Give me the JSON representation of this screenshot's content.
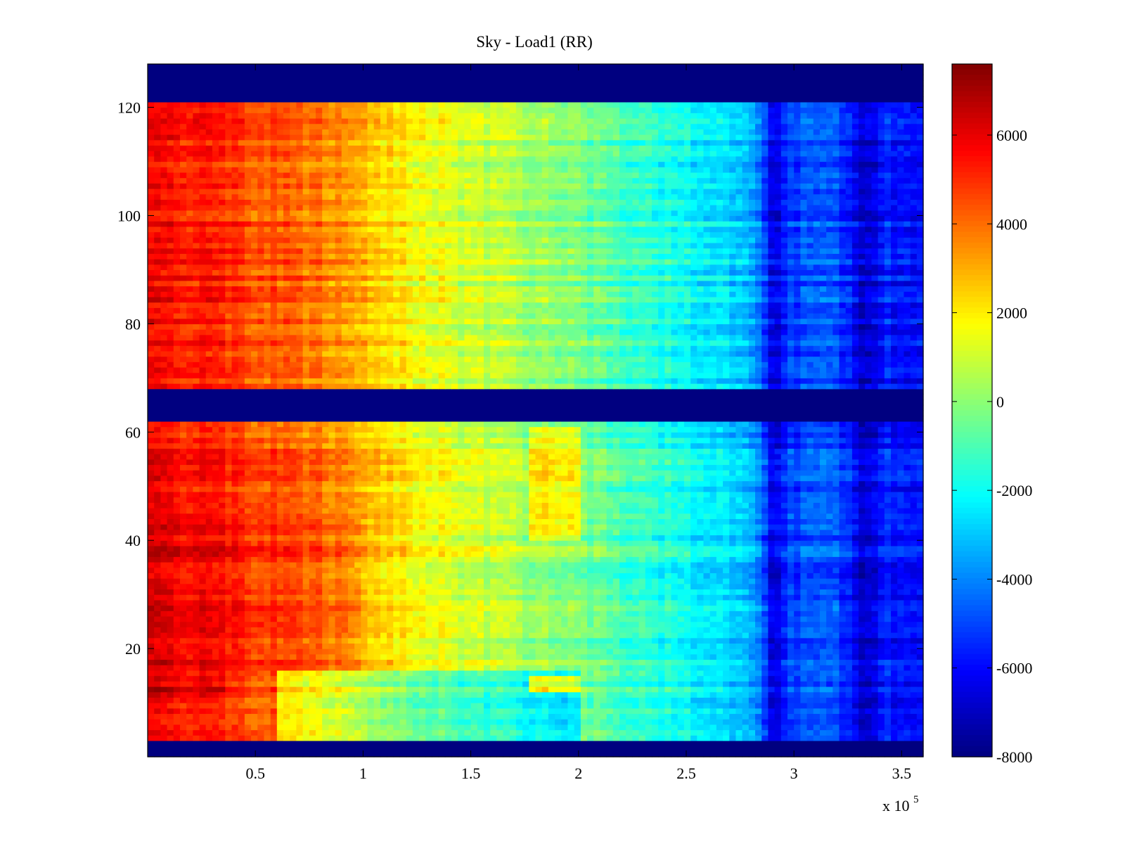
{
  "chart_data": {
    "type": "heatmap",
    "title": "Sky - Load1 (RR)",
    "xlabel": "",
    "ylabel": "",
    "x_exponent_label": "x 10",
    "x_exponent_power": "5",
    "x_range": [
      0,
      360000
    ],
    "y_range": [
      0,
      128
    ],
    "x_ticks": [
      {
        "value": 50000,
        "label": "0.5"
      },
      {
        "value": 100000,
        "label": "1"
      },
      {
        "value": 150000,
        "label": "1.5"
      },
      {
        "value": 200000,
        "label": "2"
      },
      {
        "value": 250000,
        "label": "2.5"
      },
      {
        "value": 300000,
        "label": "3"
      },
      {
        "value": 350000,
        "label": "3.5"
      }
    ],
    "y_ticks": [
      {
        "value": 20,
        "label": "20"
      },
      {
        "value": 40,
        "label": "40"
      },
      {
        "value": 60,
        "label": "60"
      },
      {
        "value": 80,
        "label": "80"
      },
      {
        "value": 100,
        "label": "100"
      },
      {
        "value": 120,
        "label": "120"
      }
    ],
    "colormap": "jet",
    "color_range": [
      -8000,
      7600
    ],
    "colorbar_ticks": [
      {
        "value": 6000,
        "label": "6000"
      },
      {
        "value": 4000,
        "label": "4000"
      },
      {
        "value": 2000,
        "label": "2000"
      },
      {
        "value": 0,
        "label": "0"
      },
      {
        "value": -2000,
        "label": "-2000"
      },
      {
        "value": -4000,
        "label": "-4000"
      },
      {
        "value": -6000,
        "label": "-6000"
      },
      {
        "value": -8000,
        "label": "-8000"
      }
    ],
    "masked_rows": [
      {
        "from": 121,
        "to": 128
      },
      {
        "from": 62,
        "to": 68
      },
      {
        "from": 0,
        "to": 3
      }
    ],
    "gradient_profile": [
      {
        "x": 0,
        "value": 5800
      },
      {
        "x": 25000,
        "value": 5200
      },
      {
        "x": 50000,
        "value": 4500
      },
      {
        "x": 80000,
        "value": 3800
      },
      {
        "x": 100000,
        "value": 2800
      },
      {
        "x": 130000,
        "value": 1600
      },
      {
        "x": 160000,
        "value": 700
      },
      {
        "x": 200000,
        "value": -300
      },
      {
        "x": 240000,
        "value": -1700
      },
      {
        "x": 270000,
        "value": -2800
      },
      {
        "x": 283000,
        "value": -3600
      },
      {
        "x": 290000,
        "value": -6300
      },
      {
        "x": 300000,
        "value": -5000
      },
      {
        "x": 320000,
        "value": -4800
      },
      {
        "x": 330000,
        "value": -6600
      },
      {
        "x": 345000,
        "value": -5600
      },
      {
        "x": 360000,
        "value": -6000
      }
    ],
    "regions": [
      {
        "x_from": 0,
        "x_to": 35000,
        "y_from": 10,
        "y_to": 15,
        "offset": 700
      },
      {
        "x_from": 0,
        "x_to": 100000,
        "y_from": 16,
        "y_to": 44,
        "offset": 500
      },
      {
        "x_from": 60000,
        "x_to": 200000,
        "y_from": 3,
        "y_to": 16,
        "offset": -2200
      },
      {
        "x_from": 177000,
        "x_to": 200000,
        "y_from": 40,
        "y_to": 61,
        "offset": 1700
      },
      {
        "x_from": 177000,
        "x_to": 200000,
        "y_from": 12,
        "y_to": 15,
        "offset": 3600
      }
    ]
  }
}
